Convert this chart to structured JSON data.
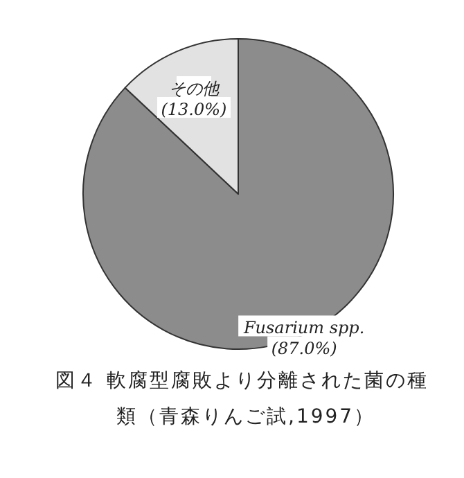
{
  "chart_data": {
    "type": "pie",
    "title": "図４ 軟腐型腐敗より分離された菌の種類（青森りんご試,1997）",
    "categories": [
      "Fusarium spp.",
      "その他"
    ],
    "values": [
      87.0,
      13.0
    ],
    "value_labels": [
      "(87.0%)",
      "(13.0%)"
    ],
    "colors": [
      "#8c8c8c",
      "#e2e2e2"
    ]
  }
}
